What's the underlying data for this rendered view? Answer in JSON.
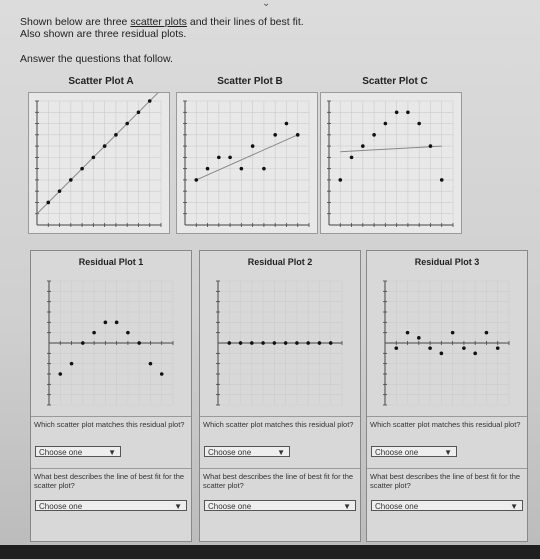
{
  "intro": {
    "line1_pre": "Shown below are three",
    "line1_link": "scatter plots",
    "line1_post": "and their lines of best fit.",
    "line2": "Also shown are three residual plots.",
    "answer": "Answer the questions that follow."
  },
  "scatter_titles": [
    "Scatter Plot A",
    "Scatter Plot B",
    "Scatter Plot C"
  ],
  "residual_titles": [
    "Residual Plot 1",
    "Residual Plot 2",
    "Residual Plot 3"
  ],
  "questions": {
    "match": "Which scatter plot matches this residual plot?",
    "best_fit": "What best describes the line of best fit for the scatter plot?",
    "choose": "Choose one"
  },
  "chart_data": [
    {
      "type": "scatter",
      "title": "Scatter Plot A",
      "x": [
        1,
        2,
        3,
        4,
        5,
        6,
        7,
        8,
        9,
        10
      ],
      "y": [
        2,
        3,
        4,
        5,
        6,
        7,
        8,
        9,
        10,
        11
      ],
      "xlim": [
        0,
        11
      ],
      "ylim": [
        0,
        11
      ],
      "line": [
        [
          0,
          1
        ],
        [
          11,
          12
        ]
      ]
    },
    {
      "type": "scatter",
      "title": "Scatter Plot B",
      "x": [
        1,
        2,
        3,
        4,
        5,
        6,
        7,
        8,
        9,
        10
      ],
      "y": [
        4,
        5,
        6,
        6,
        5,
        7,
        5,
        8,
        9,
        8
      ],
      "xlim": [
        0,
        11
      ],
      "ylim": [
        0,
        11
      ],
      "line": [
        [
          1,
          4
        ],
        [
          10,
          8
        ]
      ]
    },
    {
      "type": "scatter",
      "title": "Scatter Plot C",
      "x": [
        1,
        2,
        3,
        4,
        5,
        6,
        7,
        8,
        9,
        10
      ],
      "y": [
        4,
        6,
        7,
        8,
        9,
        10,
        10,
        9,
        7,
        4
      ],
      "xlim": [
        0,
        11
      ],
      "ylim": [
        0,
        11
      ],
      "line": [
        [
          1,
          6.5
        ],
        [
          10,
          7
        ]
      ]
    },
    {
      "type": "scatter",
      "title": "Residual Plot 1",
      "x": [
        1,
        2,
        3,
        4,
        5,
        6,
        7,
        8,
        9,
        10
      ],
      "y": [
        -3,
        -2,
        0,
        1,
        2,
        2,
        1,
        0,
        -2,
        -3
      ],
      "xlim": [
        0,
        11
      ],
      "ylim": [
        -6,
        6
      ]
    },
    {
      "type": "scatter",
      "title": "Residual Plot 2",
      "x": [
        1,
        2,
        3,
        4,
        5,
        6,
        7,
        8,
        9,
        10
      ],
      "y": [
        0,
        0,
        0,
        0,
        0,
        0,
        0,
        0,
        0,
        0
      ],
      "xlim": [
        0,
        11
      ],
      "ylim": [
        -6,
        6
      ]
    },
    {
      "type": "scatter",
      "title": "Residual Plot 3",
      "x": [
        1,
        2,
        3,
        4,
        5,
        6,
        7,
        8,
        9,
        10
      ],
      "y": [
        -0.5,
        1,
        0.5,
        -0.5,
        -1,
        1,
        -0.5,
        -1,
        1,
        -0.5
      ],
      "xlim": [
        0,
        11
      ],
      "ylim": [
        -6,
        6
      ]
    }
  ]
}
